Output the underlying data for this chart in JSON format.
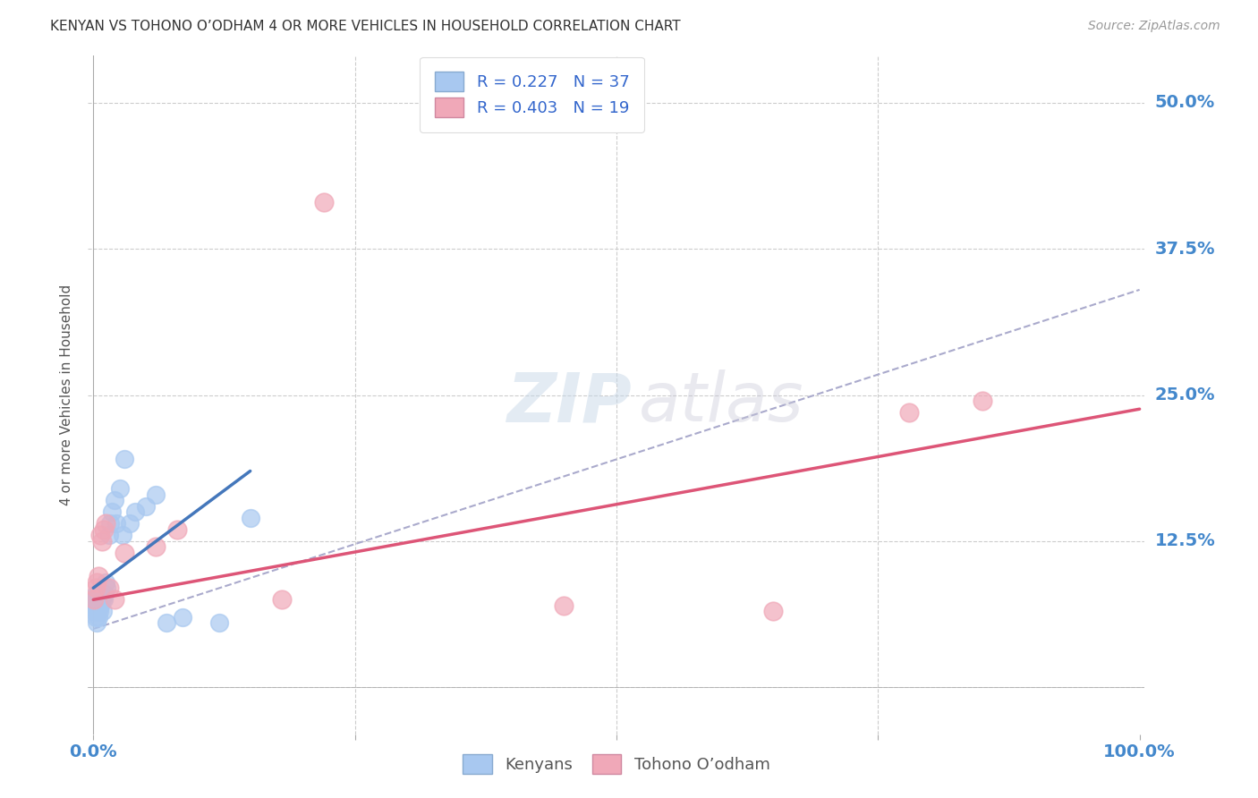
{
  "title": "KENYAN VS TOHONO O’ODHAM 4 OR MORE VEHICLES IN HOUSEHOLD CORRELATION CHART",
  "source": "Source: ZipAtlas.com",
  "ylabel": "4 or more Vehicles in Household",
  "xlim": [
    -0.005,
    1.005
  ],
  "ylim": [
    -0.04,
    0.54
  ],
  "xticks": [
    0.0,
    0.25,
    0.5,
    0.75,
    1.0
  ],
  "xtick_labels": [
    "0.0%",
    "",
    "",
    "",
    "100.0%"
  ],
  "yticks": [
    0.0,
    0.125,
    0.25,
    0.375,
    0.5
  ],
  "ytick_labels": [
    "",
    "12.5%",
    "25.0%",
    "37.5%",
    "50.0%"
  ],
  "kenyan_R": 0.227,
  "kenyan_N": 37,
  "tohono_R": 0.403,
  "tohono_N": 19,
  "kenyan_color": "#a8c8f0",
  "tohono_color": "#f0a8b8",
  "kenyan_line_color": "#4477bb",
  "tohono_line_color": "#dd5577",
  "trend_line_color": "#aaaacc",
  "bg_color": "#ffffff",
  "grid_color": "#cccccc",
  "tick_color": "#4488cc",
  "kenyan_x": [
    0.001,
    0.001,
    0.001,
    0.002,
    0.002,
    0.002,
    0.003,
    0.003,
    0.003,
    0.004,
    0.004,
    0.005,
    0.005,
    0.006,
    0.007,
    0.008,
    0.009,
    0.01,
    0.011,
    0.012,
    0.013,
    0.015,
    0.016,
    0.018,
    0.02,
    0.022,
    0.025,
    0.028,
    0.03,
    0.035,
    0.04,
    0.05,
    0.06,
    0.07,
    0.085,
    0.12,
    0.15
  ],
  "kenyan_y": [
    0.065,
    0.07,
    0.075,
    0.06,
    0.07,
    0.08,
    0.055,
    0.065,
    0.075,
    0.07,
    0.08,
    0.06,
    0.07,
    0.065,
    0.07,
    0.075,
    0.065,
    0.075,
    0.08,
    0.09,
    0.085,
    0.13,
    0.14,
    0.15,
    0.16,
    0.14,
    0.17,
    0.13,
    0.195,
    0.14,
    0.15,
    0.155,
    0.165,
    0.055,
    0.06,
    0.055,
    0.145
  ],
  "tohono_x": [
    0.001,
    0.002,
    0.003,
    0.005,
    0.007,
    0.008,
    0.01,
    0.012,
    0.015,
    0.02,
    0.03,
    0.06,
    0.08,
    0.18,
    0.22,
    0.45,
    0.65,
    0.78,
    0.85
  ],
  "tohono_y": [
    0.075,
    0.085,
    0.09,
    0.095,
    0.13,
    0.125,
    0.135,
    0.14,
    0.085,
    0.075,
    0.115,
    0.12,
    0.135,
    0.075,
    0.415,
    0.07,
    0.065,
    0.235,
    0.245
  ],
  "kenyan_line_x": [
    0.0,
    0.15
  ],
  "kenyan_line_y": [
    0.085,
    0.185
  ],
  "tohono_line_x": [
    0.0,
    1.0
  ],
  "tohono_line_y": [
    0.075,
    0.238
  ],
  "dash_line_x": [
    0.0,
    1.0
  ],
  "dash_line_y": [
    0.05,
    0.34
  ],
  "watermark_zip": "ZIP",
  "watermark_atlas": "atlas",
  "legend_label_kenyan": "Kenyans",
  "legend_label_tohono": "Tohono O’odham"
}
